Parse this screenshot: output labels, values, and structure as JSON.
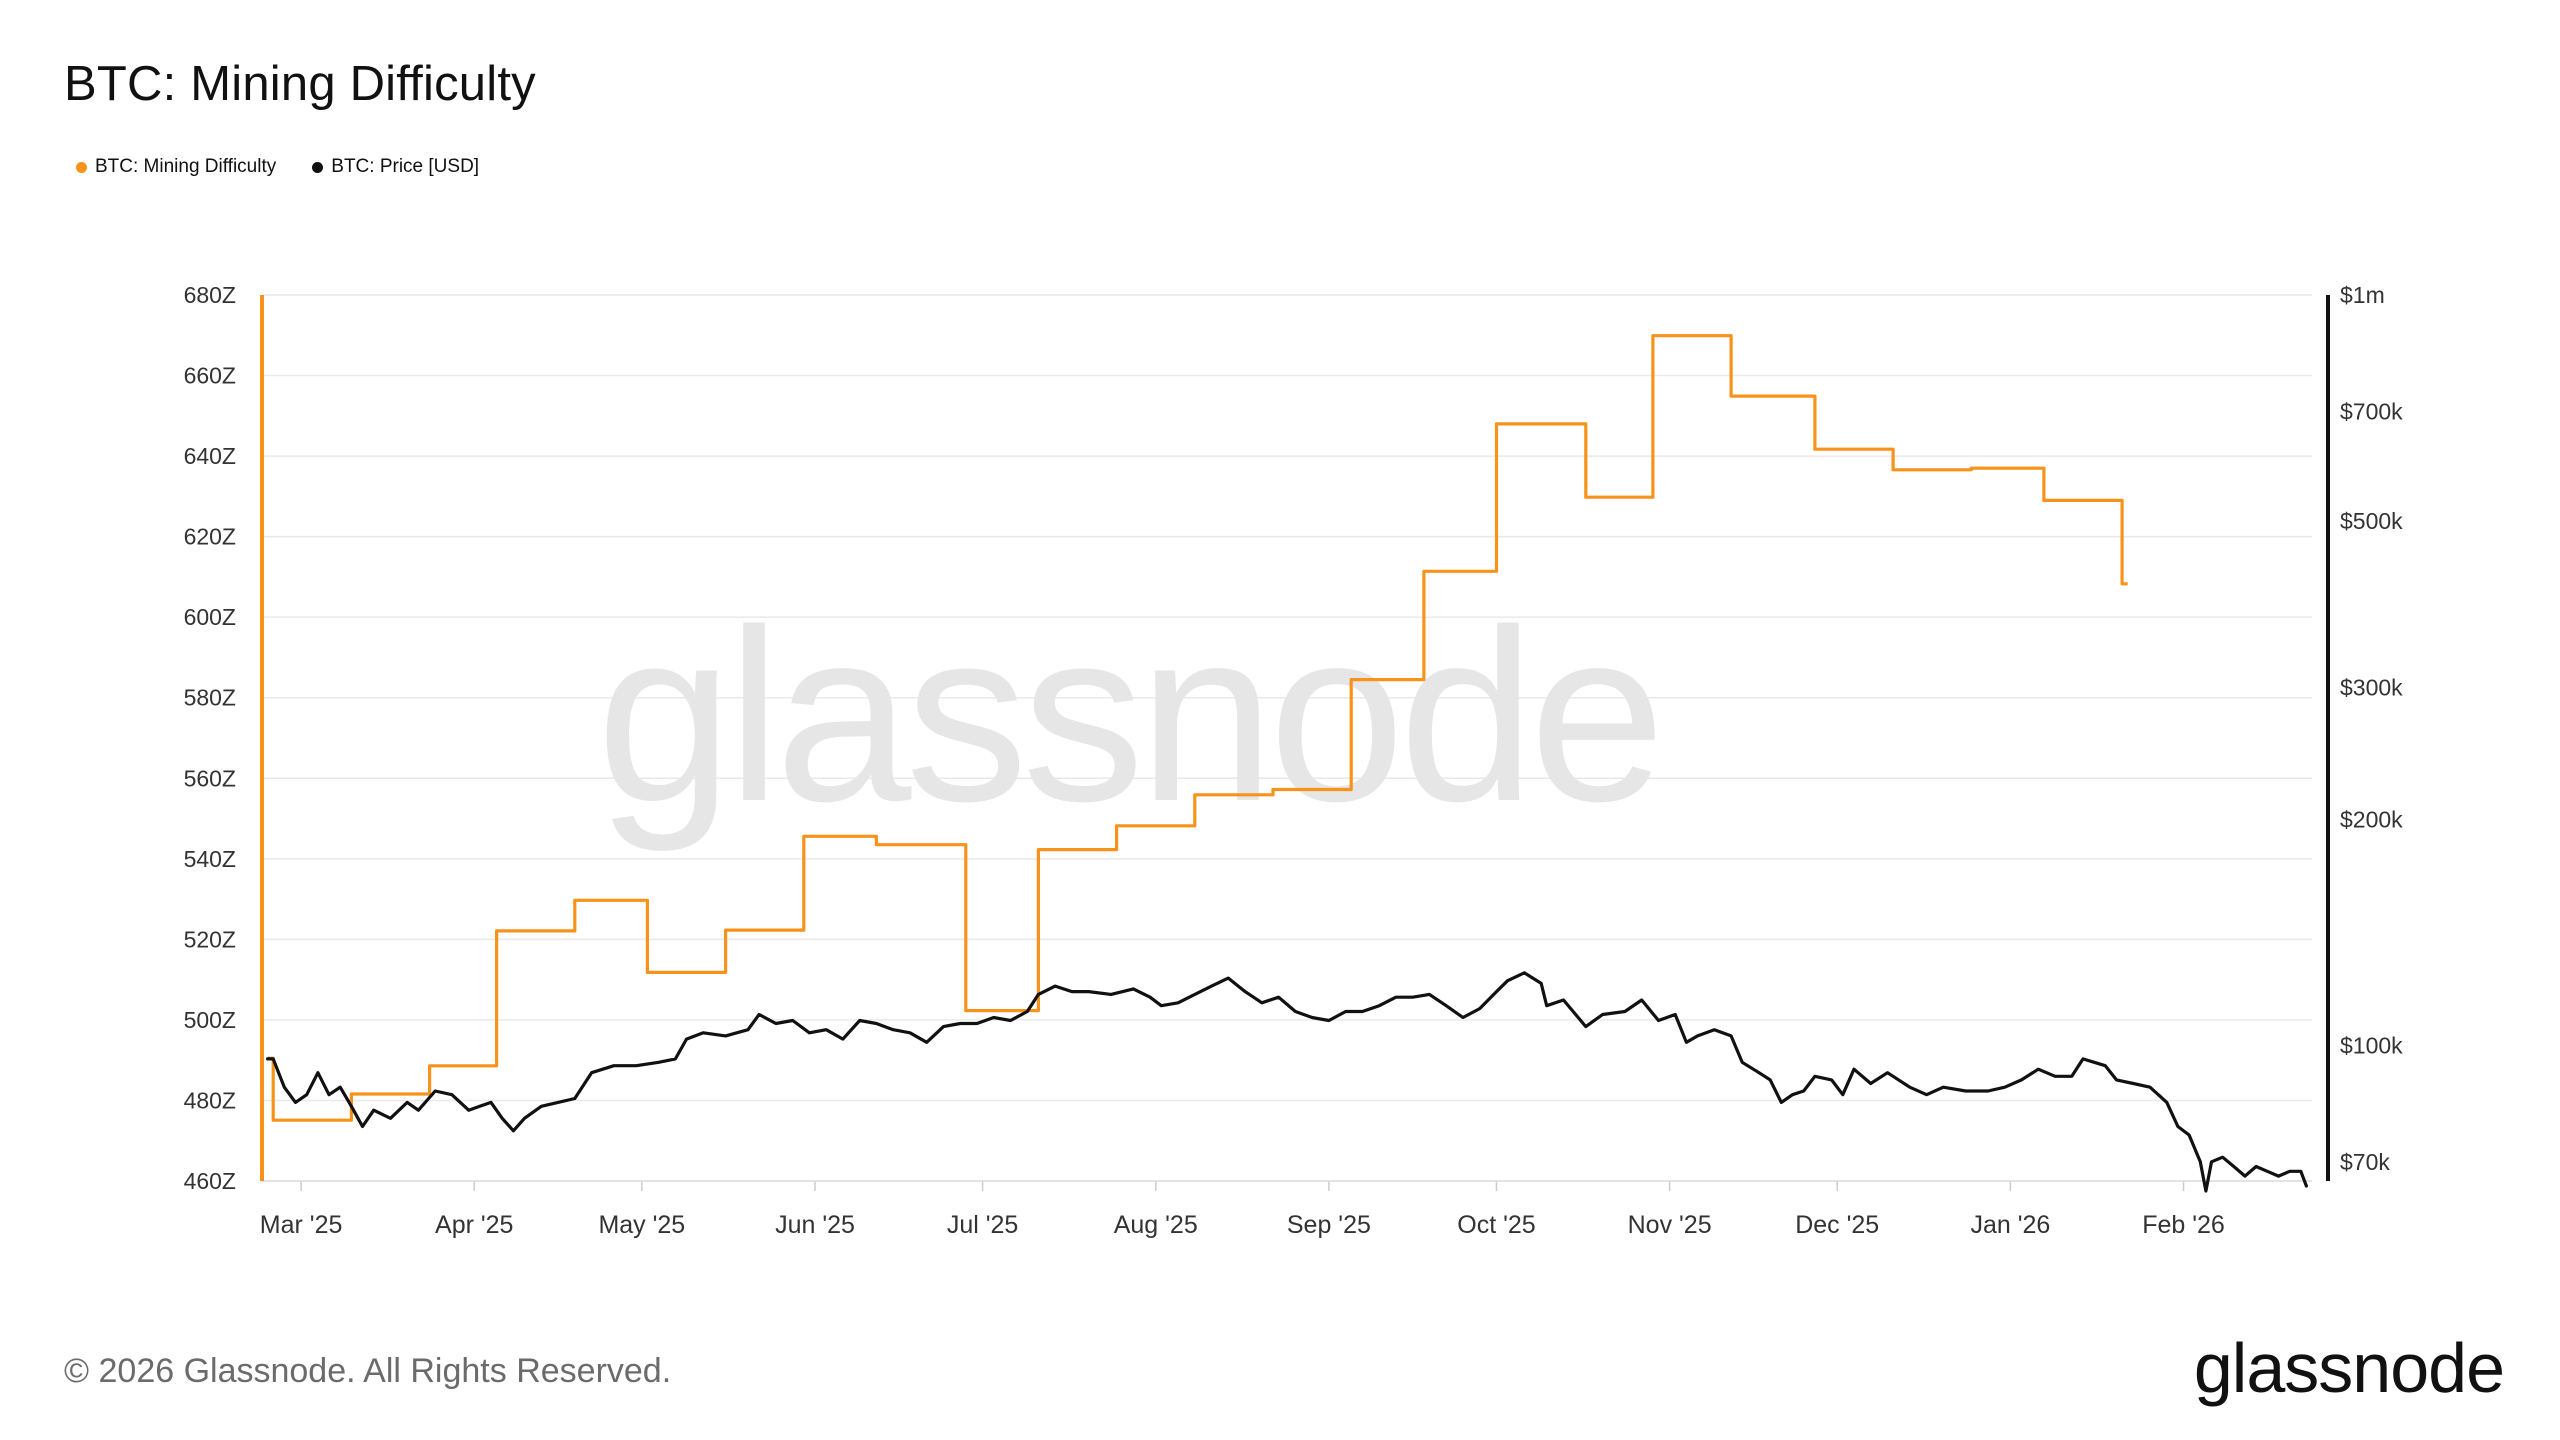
{
  "header": {
    "title": "BTC: Mining Difficulty"
  },
  "legend": [
    {
      "label": "BTC: Mining Difficulty",
      "color": "#f7931a"
    },
    {
      "label": "BTC: Price [USD]",
      "color": "#111111"
    }
  ],
  "footer": {
    "copyright": "© 2026 Glassnode. All Rights Reserved.",
    "brand": "glassnode"
  },
  "chart_data": {
    "type": "line",
    "title": "BTC: Mining Difficulty",
    "watermark": "glassnode",
    "x_ticks": [
      "Mar '25",
      "Apr '25",
      "May '25",
      "Jun '25",
      "Jul '25",
      "Aug '25",
      "Sep '25",
      "Oct '25",
      "Nov '25",
      "Dec '25",
      "Jan '26",
      "Feb '26"
    ],
    "xlim": [
      "2025-02-22",
      "2026-02-24"
    ],
    "y_left": {
      "ticks": [
        "460Z",
        "480Z",
        "500Z",
        "520Z",
        "540Z",
        "560Z",
        "580Z",
        "600Z",
        "620Z",
        "640Z",
        "660Z",
        "680Z"
      ],
      "ylim": [
        460,
        680
      ],
      "unit": "Z"
    },
    "y_right": {
      "scale": "log",
      "ticks": [
        "$70k",
        "$100k",
        "$200k",
        "$300k",
        "$500k",
        "$700k",
        "$1m"
      ],
      "tick_values": [
        70000,
        100000,
        200000,
        300000,
        500000,
        700000,
        1000000
      ],
      "ylim": [
        66000,
        1000000
      ]
    },
    "grid": true,
    "colors": {
      "difficulty": "#f7931a",
      "price": "#111111",
      "grid": "#e9e9e9"
    },
    "series": [
      {
        "name": "BTC: Mining Difficulty",
        "axis": "left",
        "step": true,
        "color": "#f7931a",
        "points": [
          [
            "2025-02-23",
            490.5
          ],
          [
            "2025-02-24",
            475.1
          ],
          [
            "2025-03-10",
            481.6
          ],
          [
            "2025-03-24",
            488.6
          ],
          [
            "2025-04-05",
            522.1
          ],
          [
            "2025-04-19",
            529.7
          ],
          [
            "2025-05-02",
            511.8
          ],
          [
            "2025-05-16",
            522.3
          ],
          [
            "2025-05-30",
            545.6
          ],
          [
            "2025-06-12",
            543.5
          ],
          [
            "2025-06-28",
            502.3
          ],
          [
            "2025-07-11",
            542.3
          ],
          [
            "2025-07-25",
            548.2
          ],
          [
            "2025-08-08",
            555.9
          ],
          [
            "2025-08-22",
            557.2
          ],
          [
            "2025-09-05",
            584.5
          ],
          [
            "2025-09-18",
            611.4
          ],
          [
            "2025-10-01",
            648.0
          ],
          [
            "2025-10-17",
            629.8
          ],
          [
            "2025-10-29",
            669.9
          ],
          [
            "2025-11-12",
            654.9
          ],
          [
            "2025-11-27",
            641.7
          ],
          [
            "2025-12-11",
            636.6
          ],
          [
            "2025-12-25",
            637.0
          ],
          [
            "2026-01-07",
            629.0
          ],
          [
            "2026-01-21",
            608.3
          ],
          [
            "2026-01-22",
            608.3
          ]
        ]
      },
      {
        "name": "BTC: Price [USD]",
        "axis": "right",
        "color": "#111111",
        "points": [
          [
            "2025-02-23",
            96000
          ],
          [
            "2025-02-24",
            96000
          ],
          [
            "2025-02-26",
            88000
          ],
          [
            "2025-02-28",
            84000
          ],
          [
            "2025-03-02",
            86000
          ],
          [
            "2025-03-04",
            92000
          ],
          [
            "2025-03-06",
            86000
          ],
          [
            "2025-03-08",
            88000
          ],
          [
            "2025-03-10",
            83000
          ],
          [
            "2025-03-12",
            78000
          ],
          [
            "2025-03-14",
            82000
          ],
          [
            "2025-03-17",
            80000
          ],
          [
            "2025-03-20",
            84000
          ],
          [
            "2025-03-22",
            82000
          ],
          [
            "2025-03-25",
            87000
          ],
          [
            "2025-03-28",
            86000
          ],
          [
            "2025-03-31",
            82000
          ],
          [
            "2025-04-02",
            83000
          ],
          [
            "2025-04-04",
            84000
          ],
          [
            "2025-04-06",
            80000
          ],
          [
            "2025-04-08",
            77000
          ],
          [
            "2025-04-10",
            80000
          ],
          [
            "2025-04-13",
            83000
          ],
          [
            "2025-04-16",
            84000
          ],
          [
            "2025-04-19",
            85000
          ],
          [
            "2025-04-22",
            92000
          ],
          [
            "2025-04-26",
            94000
          ],
          [
            "2025-04-30",
            94000
          ],
          [
            "2025-05-04",
            95000
          ],
          [
            "2025-05-07",
            96000
          ],
          [
            "2025-05-09",
            102000
          ],
          [
            "2025-05-12",
            104000
          ],
          [
            "2025-05-16",
            103000
          ],
          [
            "2025-05-20",
            105000
          ],
          [
            "2025-05-22",
            110000
          ],
          [
            "2025-05-25",
            107000
          ],
          [
            "2025-05-28",
            108000
          ],
          [
            "2025-05-31",
            104000
          ],
          [
            "2025-06-03",
            105000
          ],
          [
            "2025-06-06",
            102000
          ],
          [
            "2025-06-09",
            108000
          ],
          [
            "2025-06-12",
            107000
          ],
          [
            "2025-06-15",
            105000
          ],
          [
            "2025-06-18",
            104000
          ],
          [
            "2025-06-21",
            101000
          ],
          [
            "2025-06-24",
            106000
          ],
          [
            "2025-06-27",
            107000
          ],
          [
            "2025-06-30",
            107000
          ],
          [
            "2025-07-03",
            109000
          ],
          [
            "2025-07-06",
            108000
          ],
          [
            "2025-07-09",
            111000
          ],
          [
            "2025-07-11",
            117000
          ],
          [
            "2025-07-14",
            120000
          ],
          [
            "2025-07-17",
            118000
          ],
          [
            "2025-07-20",
            118000
          ],
          [
            "2025-07-24",
            117000
          ],
          [
            "2025-07-28",
            119000
          ],
          [
            "2025-07-31",
            116000
          ],
          [
            "2025-08-02",
            113000
          ],
          [
            "2025-08-05",
            114000
          ],
          [
            "2025-08-08",
            117000
          ],
          [
            "2025-08-11",
            120000
          ],
          [
            "2025-08-14",
            123000
          ],
          [
            "2025-08-17",
            118000
          ],
          [
            "2025-08-20",
            114000
          ],
          [
            "2025-08-23",
            116000
          ],
          [
            "2025-08-26",
            111000
          ],
          [
            "2025-08-29",
            109000
          ],
          [
            "2025-09-01",
            108000
          ],
          [
            "2025-09-04",
            111000
          ],
          [
            "2025-09-07",
            111000
          ],
          [
            "2025-09-10",
            113000
          ],
          [
            "2025-09-13",
            116000
          ],
          [
            "2025-09-16",
            116000
          ],
          [
            "2025-09-19",
            117000
          ],
          [
            "2025-09-22",
            113000
          ],
          [
            "2025-09-25",
            109000
          ],
          [
            "2025-09-28",
            112000
          ],
          [
            "2025-10-01",
            118000
          ],
          [
            "2025-10-03",
            122000
          ],
          [
            "2025-10-06",
            125000
          ],
          [
            "2025-10-09",
            121000
          ],
          [
            "2025-10-10",
            113000
          ],
          [
            "2025-10-13",
            115000
          ],
          [
            "2025-10-17",
            106000
          ],
          [
            "2025-10-20",
            110000
          ],
          [
            "2025-10-24",
            111000
          ],
          [
            "2025-10-27",
            115000
          ],
          [
            "2025-10-30",
            108000
          ],
          [
            "2025-11-02",
            110000
          ],
          [
            "2025-11-04",
            101000
          ],
          [
            "2025-11-06",
            103000
          ],
          [
            "2025-11-09",
            105000
          ],
          [
            "2025-11-12",
            103000
          ],
          [
            "2025-11-14",
            95000
          ],
          [
            "2025-11-17",
            92000
          ],
          [
            "2025-11-19",
            90000
          ],
          [
            "2025-11-21",
            84000
          ],
          [
            "2025-11-23",
            86000
          ],
          [
            "2025-11-25",
            87000
          ],
          [
            "2025-11-27",
            91000
          ],
          [
            "2025-11-30",
            90000
          ],
          [
            "2025-12-02",
            86000
          ],
          [
            "2025-12-04",
            93000
          ],
          [
            "2025-12-07",
            89000
          ],
          [
            "2025-12-10",
            92000
          ],
          [
            "2025-12-14",
            88000
          ],
          [
            "2025-12-17",
            86000
          ],
          [
            "2025-12-20",
            88000
          ],
          [
            "2025-12-24",
            87000
          ],
          [
            "2025-12-28",
            87000
          ],
          [
            "2025-12-31",
            88000
          ],
          [
            "2026-01-03",
            90000
          ],
          [
            "2026-01-06",
            93000
          ],
          [
            "2026-01-09",
            91000
          ],
          [
            "2026-01-12",
            91000
          ],
          [
            "2026-01-14",
            96000
          ],
          [
            "2026-01-16",
            95000
          ],
          [
            "2026-01-18",
            94000
          ],
          [
            "2026-01-20",
            90000
          ],
          [
            "2026-01-23",
            89000
          ],
          [
            "2026-01-26",
            88000
          ],
          [
            "2026-01-29",
            84000
          ],
          [
            "2026-01-31",
            78000
          ],
          [
            "2026-02-02",
            76000
          ],
          [
            "2026-02-04",
            70000
          ],
          [
            "2026-02-05",
            64000
          ],
          [
            "2026-02-06",
            70000
          ],
          [
            "2026-02-08",
            71000
          ],
          [
            "2026-02-10",
            69000
          ],
          [
            "2026-02-12",
            67000
          ],
          [
            "2026-02-14",
            69000
          ],
          [
            "2026-02-16",
            68000
          ],
          [
            "2026-02-18",
            67000
          ],
          [
            "2026-02-20",
            68000
          ],
          [
            "2026-02-22",
            68000
          ],
          [
            "2026-02-23",
            65000
          ]
        ]
      }
    ]
  }
}
